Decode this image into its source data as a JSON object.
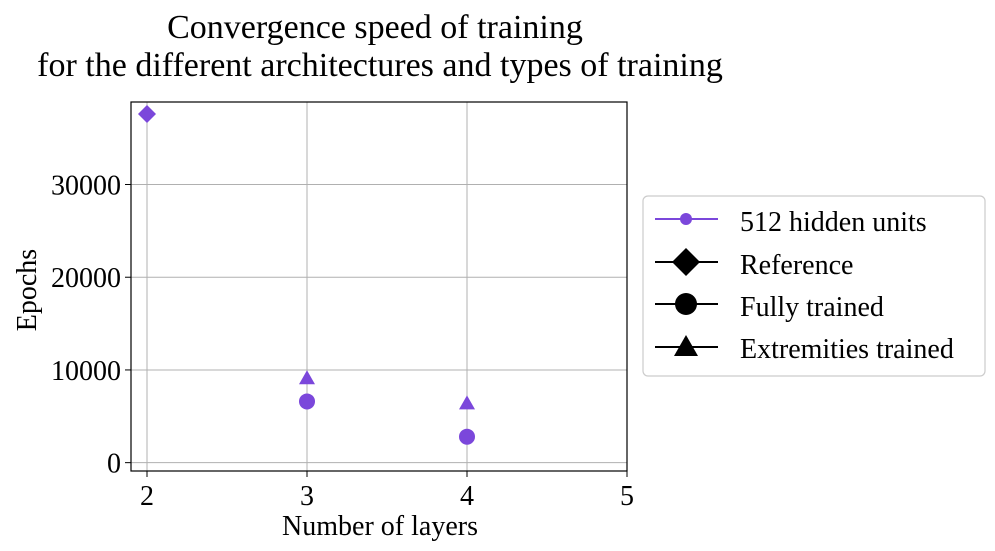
{
  "chart_data": {
    "type": "scatter",
    "title_lines": [
      "Convergence speed of training",
      "for the different architectures and types of training"
    ],
    "xlabel": "Number of layers",
    "ylabel": "Epochs",
    "xlim": [
      1.9,
      5
    ],
    "ylim": [
      -900,
      38900
    ],
    "x_ticks": [
      2,
      3,
      4,
      5
    ],
    "y_ticks": [
      0,
      10000,
      20000,
      30000
    ],
    "grid": true,
    "legend_placement": "right, outside plot",
    "series_color": "#7b47db",
    "legend": [
      {
        "label": "512 hidden units",
        "marker": "line-circle",
        "color": "#7b47db"
      },
      {
        "label": "Reference",
        "marker": "diamond",
        "color": "#000000"
      },
      {
        "label": "Fully trained",
        "marker": "circle",
        "color": "#000000"
      },
      {
        "label": "Extremities trained",
        "marker": "triangle",
        "color": "#000000"
      }
    ],
    "points": [
      {
        "type": "Reference",
        "marker": "diamond",
        "x": 2,
        "y": 37600
      },
      {
        "type": "Fully trained",
        "marker": "circle",
        "x": 3,
        "y": 6600
      },
      {
        "type": "Extremities trained",
        "marker": "triangle",
        "x": 3,
        "y": 9100
      },
      {
        "type": "Fully trained",
        "marker": "circle",
        "x": 4,
        "y": 2800
      },
      {
        "type": "Extremities trained",
        "marker": "triangle",
        "x": 4,
        "y": 6400
      }
    ]
  }
}
